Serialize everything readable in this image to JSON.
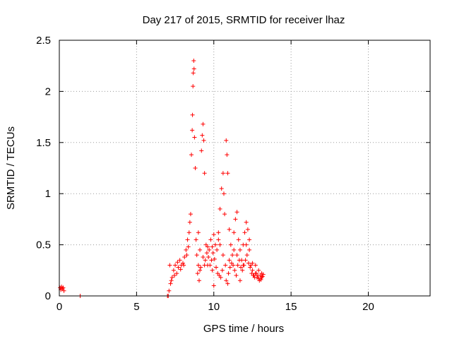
{
  "chart_data": {
    "type": "scatter",
    "title": "Day 217 of 2015, SRMTID for receiver lhaz",
    "xlabel": "GPS time / hours",
    "ylabel": "SRMTID / TECUs",
    "xlim": [
      0,
      24
    ],
    "ylim": [
      0,
      2.5
    ],
    "xticks": [
      0,
      5,
      10,
      15,
      20
    ],
    "yticks": [
      0,
      0.5,
      1,
      1.5,
      2,
      2.5
    ],
    "xtick_labels": [
      "0",
      "5",
      "10",
      "15",
      "20"
    ],
    "ytick_labels": [
      "0",
      "0.5",
      "1",
      "1.5",
      "2",
      "2.5"
    ],
    "grid": true,
    "marker": "+",
    "series": [
      {
        "name": "SRMTID",
        "color": "#ff0000",
        "points": [
          [
            0.05,
            0.08
          ],
          [
            0.1,
            0.06
          ],
          [
            0.15,
            0.09
          ],
          [
            0.2,
            0.07
          ],
          [
            0.25,
            0.08
          ],
          [
            0.3,
            0.05
          ],
          [
            1.35,
            0.0
          ],
          [
            7.0,
            0.0
          ],
          [
            7.05,
            0.0
          ],
          [
            7.1,
            0.05
          ],
          [
            7.2,
            0.12
          ],
          [
            7.3,
            0.18
          ],
          [
            7.4,
            0.25
          ],
          [
            7.5,
            0.3
          ],
          [
            7.6,
            0.22
          ],
          [
            7.7,
            0.28
          ],
          [
            7.8,
            0.35
          ],
          [
            7.9,
            0.3
          ],
          [
            8.0,
            0.32
          ],
          [
            8.1,
            0.38
          ],
          [
            8.2,
            0.45
          ],
          [
            8.3,
            0.55
          ],
          [
            8.4,
            0.62
          ],
          [
            8.45,
            0.72
          ],
          [
            8.5,
            0.8
          ],
          [
            8.55,
            1.38
          ],
          [
            8.6,
            1.62
          ],
          [
            8.62,
            1.77
          ],
          [
            8.65,
            2.05
          ],
          [
            8.67,
            2.18
          ],
          [
            8.7,
            2.3
          ],
          [
            8.72,
            2.22
          ],
          [
            8.75,
            1.55
          ],
          [
            8.8,
            1.25
          ],
          [
            8.9,
            0.4
          ],
          [
            9.0,
            0.3
          ],
          [
            9.1,
            0.25
          ],
          [
            9.2,
            1.42
          ],
          [
            9.25,
            1.57
          ],
          [
            9.3,
            1.68
          ],
          [
            9.35,
            1.52
          ],
          [
            9.4,
            1.2
          ],
          [
            9.5,
            0.5
          ],
          [
            9.6,
            0.3
          ],
          [
            9.7,
            0.45
          ],
          [
            9.8,
            0.55
          ],
          [
            9.9,
            0.48
          ],
          [
            10.0,
            0.6
          ],
          [
            10.1,
            0.5
          ],
          [
            10.2,
            0.45
          ],
          [
            10.3,
            0.55
          ],
          [
            10.4,
            0.85
          ],
          [
            10.5,
            1.05
          ],
          [
            10.6,
            1.2
          ],
          [
            10.65,
            1.0
          ],
          [
            10.7,
            0.8
          ],
          [
            10.8,
            1.52
          ],
          [
            10.85,
            1.38
          ],
          [
            10.9,
            1.2
          ],
          [
            11.0,
            0.65
          ],
          [
            11.1,
            0.5
          ],
          [
            11.2,
            0.4
          ],
          [
            11.3,
            0.62
          ],
          [
            11.4,
            0.75
          ],
          [
            11.5,
            0.82
          ],
          [
            11.6,
            0.55
          ],
          [
            11.7,
            0.45
          ],
          [
            11.8,
            0.35
          ],
          [
            11.9,
            0.5
          ],
          [
            12.0,
            0.62
          ],
          [
            12.1,
            0.72
          ],
          [
            12.2,
            0.65
          ],
          [
            12.3,
            0.45
          ],
          [
            12.4,
            0.3
          ],
          [
            12.5,
            0.25
          ],
          [
            12.6,
            0.2
          ],
          [
            12.7,
            0.22
          ],
          [
            12.8,
            0.18
          ],
          [
            12.9,
            0.17
          ],
          [
            13.0,
            0.2
          ],
          [
            13.1,
            0.18
          ],
          [
            13.2,
            0.21
          ],
          [
            7.15,
            0.3
          ],
          [
            7.25,
            0.15
          ],
          [
            7.45,
            0.2
          ],
          [
            7.65,
            0.33
          ],
          [
            7.85,
            0.26
          ],
          [
            8.05,
            0.3
          ],
          [
            8.25,
            0.4
          ],
          [
            8.35,
            0.48
          ],
          [
            8.85,
            0.55
          ],
          [
            8.95,
            0.22
          ],
          [
            9.05,
            0.15
          ],
          [
            9.15,
            0.28
          ],
          [
            9.45,
            0.35
          ],
          [
            9.55,
            0.42
          ],
          [
            9.65,
            0.38
          ],
          [
            9.75,
            0.3
          ],
          [
            9.85,
            0.35
          ],
          [
            9.95,
            0.42
          ],
          [
            10.05,
            0.36
          ],
          [
            10.15,
            0.28
          ],
          [
            10.25,
            0.22
          ],
          [
            10.35,
            0.2
          ],
          [
            10.45,
            0.18
          ],
          [
            10.55,
            0.25
          ],
          [
            10.75,
            0.3
          ],
          [
            10.95,
            0.22
          ],
          [
            11.05,
            0.28
          ],
          [
            11.15,
            0.32
          ],
          [
            11.25,
            0.3
          ],
          [
            11.35,
            0.25
          ],
          [
            11.45,
            0.2
          ],
          [
            11.55,
            0.3
          ],
          [
            11.65,
            0.35
          ],
          [
            11.75,
            0.28
          ],
          [
            11.85,
            0.25
          ],
          [
            11.95,
            0.3
          ],
          [
            12.05,
            0.35
          ],
          [
            12.15,
            0.4
          ],
          [
            12.25,
            0.32
          ],
          [
            12.35,
            0.28
          ],
          [
            12.45,
            0.22
          ],
          [
            12.55,
            0.2
          ],
          [
            12.65,
            0.18
          ],
          [
            12.75,
            0.22
          ],
          [
            12.85,
            0.2
          ],
          [
            12.95,
            0.15
          ],
          [
            13.05,
            0.16
          ],
          [
            13.15,
            0.19
          ],
          [
            9.0,
            0.62
          ],
          [
            9.1,
            0.45
          ],
          [
            9.3,
            0.38
          ],
          [
            9.4,
            0.3
          ],
          [
            9.6,
            0.48
          ],
          [
            9.9,
            0.25
          ],
          [
            10.0,
            0.1
          ],
          [
            10.3,
            0.62
          ],
          [
            10.4,
            0.5
          ],
          [
            10.6,
            0.4
          ],
          [
            10.8,
            0.15
          ],
          [
            10.9,
            0.12
          ],
          [
            11.0,
            0.35
          ],
          [
            11.3,
            0.45
          ],
          [
            11.5,
            0.4
          ],
          [
            11.7,
            0.15
          ],
          [
            11.9,
            0.3
          ],
          [
            12.1,
            0.5
          ],
          [
            12.3,
            0.55
          ],
          [
            12.5,
            0.32
          ],
          [
            12.7,
            0.3
          ],
          [
            12.9,
            0.25
          ],
          [
            13.1,
            0.22
          ]
        ]
      }
    ]
  }
}
